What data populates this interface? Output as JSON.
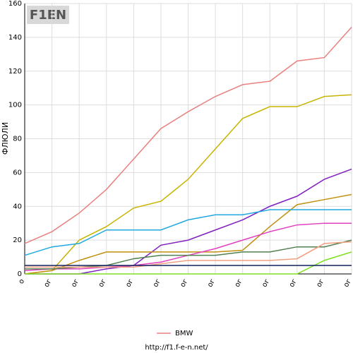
{
  "logo": "F1EN",
  "footer": "http://f1.f-e-n.net/",
  "chart_data": {
    "type": "line",
    "y_label": "ФЛЮЛИ",
    "categories": [
      "о",
      "ог",
      "ог",
      "ог",
      "ог",
      "ог",
      "ог",
      "ог",
      "ог",
      "ог",
      "ог",
      "ог",
      "ог"
    ],
    "ylim": [
      0,
      160
    ],
    "yticks": [
      0,
      20,
      40,
      60,
      80,
      100,
      120,
      140,
      160
    ],
    "grid": true,
    "series": [
      {
        "name": "BMW",
        "color": "#e88080",
        "values": [
          18,
          25,
          36,
          50,
          68,
          86,
          96,
          105,
          112,
          114,
          126,
          128,
          146
        ]
      },
      {
        "color": "#c8b400",
        "values": [
          0,
          2,
          20,
          28,
          39,
          43,
          56,
          74,
          92,
          99,
          99,
          105,
          106
        ]
      },
      {
        "color": "#8020c0",
        "values": [
          0,
          0,
          0,
          3,
          5,
          17,
          20,
          26,
          32,
          40,
          46,
          56,
          62
        ]
      },
      {
        "color": "#c09010",
        "values": [
          0,
          2,
          8,
          13,
          13,
          13,
          13,
          13,
          14,
          28,
          41,
          44,
          47
        ]
      },
      {
        "color": "#20a8e0",
        "values": [
          11,
          16,
          18,
          26,
          26,
          26,
          32,
          35,
          35,
          38,
          38,
          38,
          38
        ]
      },
      {
        "color": "#e040c0",
        "values": [
          2,
          3,
          3,
          4,
          5,
          7,
          11,
          15,
          20,
          25,
          29,
          30,
          30
        ]
      },
      {
        "color": "#508050",
        "values": [
          3,
          3,
          4,
          5,
          9,
          11,
          11,
          11,
          13,
          13,
          16,
          16,
          20
        ]
      },
      {
        "color": "#f0a080",
        "values": [
          4,
          4,
          4,
          4,
          4,
          6,
          8,
          8,
          8,
          8,
          9,
          18,
          19
        ]
      },
      {
        "color": "#80e020",
        "values": [
          0,
          0,
          0,
          0,
          0,
          0,
          0,
          0,
          0,
          0,
          0,
          8,
          13
        ]
      },
      {
        "color": "#102060",
        "values": [
          5,
          5,
          5,
          5,
          5,
          5,
          5,
          5,
          5,
          5,
          5,
          5,
          5
        ]
      }
    ]
  }
}
